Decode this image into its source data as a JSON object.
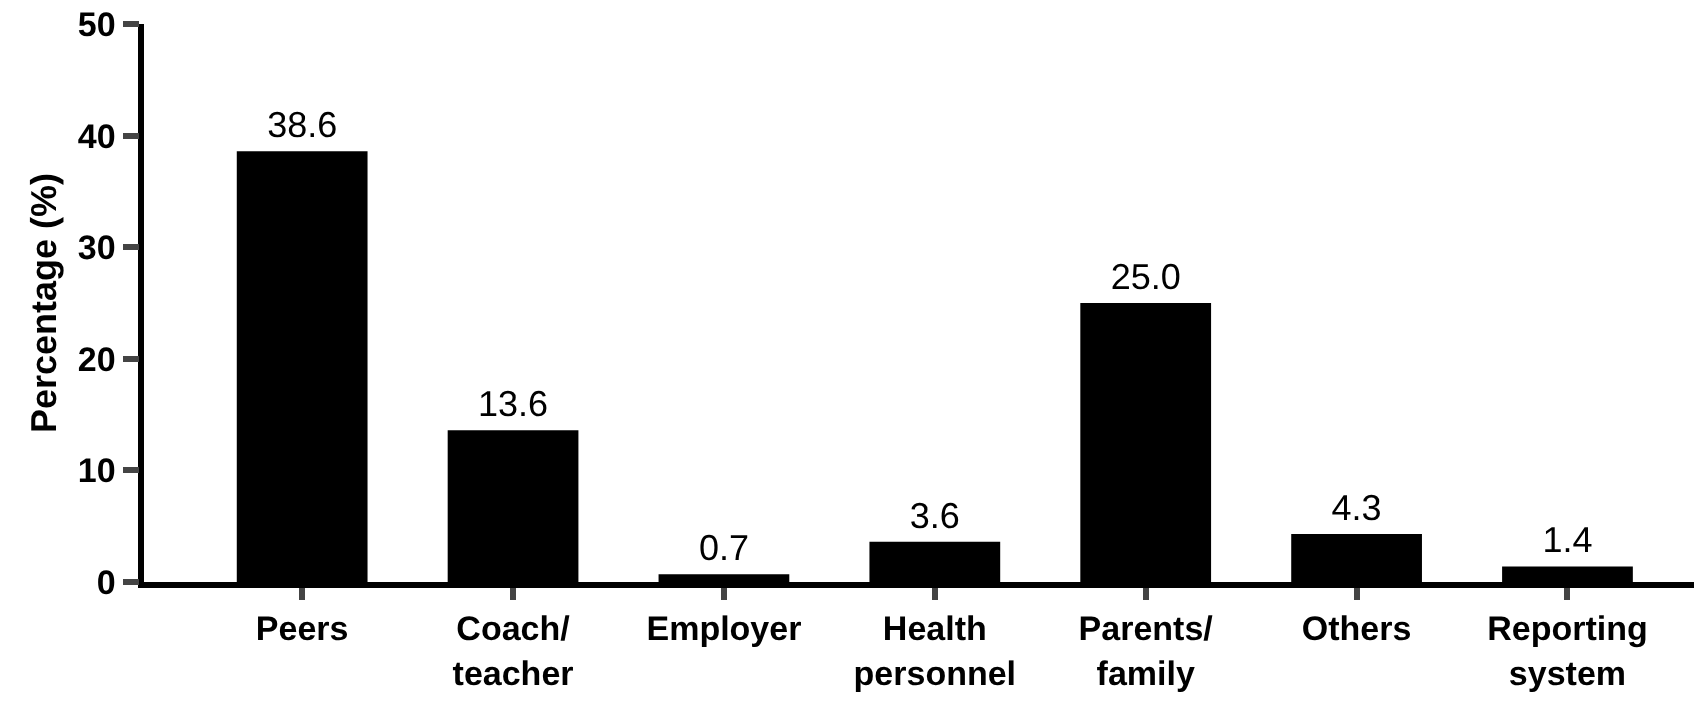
{
  "chart_data": {
    "type": "bar",
    "ylabel": "Percentage (%)",
    "categories": [
      "Peers",
      "Coach/\nteacher",
      "Employer",
      "Health\npersonnel",
      "Parents/\nfamily",
      "Others",
      "Reporting\nsystem"
    ],
    "values": [
      38.6,
      13.6,
      0.7,
      3.6,
      25.0,
      4.3,
      1.4
    ],
    "value_labels": [
      "38.6",
      "13.6",
      "0.7",
      "3.6",
      "25.0",
      "4.3",
      "1.4"
    ],
    "color": "#000000",
    "ylim": [
      0,
      50
    ],
    "yticks": [
      0,
      10,
      20,
      30,
      40,
      50
    ]
  }
}
